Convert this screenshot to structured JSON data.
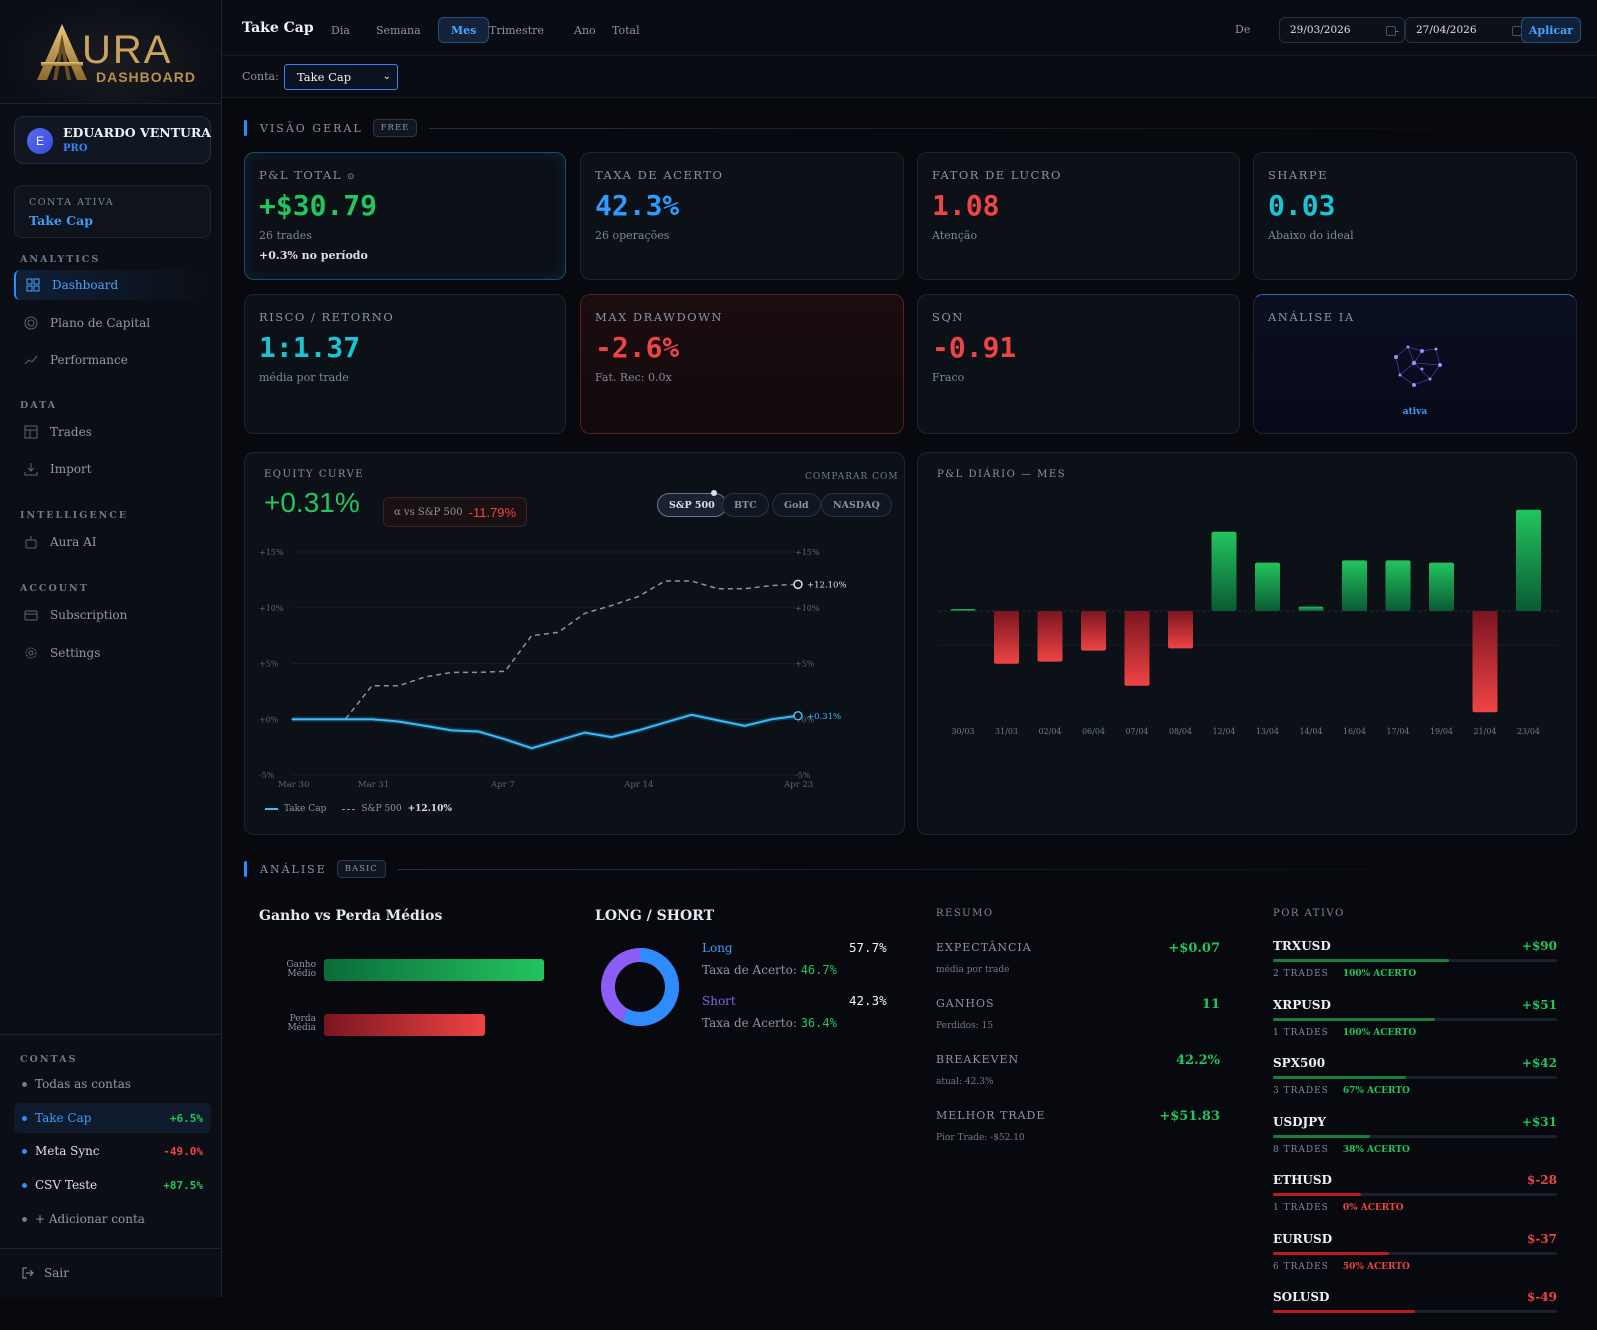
{
  "app": {
    "logo_word": "URA",
    "logo_sub": "DASHBOARD"
  },
  "user": {
    "initial": "E",
    "name": "EDUARDO VENTURA",
    "plan": "PRO"
  },
  "active_account": {
    "label": "CONTA ATIVA",
    "name": "Take Cap"
  },
  "nav": {
    "analytics_label": "ANALYTICS",
    "data_label": "DATA",
    "intelligence_label": "INTELLIGENCE",
    "account_label": "ACCOUNT",
    "items": [
      {
        "label": "Dashboard",
        "icon": "grid-icon"
      },
      {
        "label": "Plano de Capital",
        "icon": "target-icon"
      },
      {
        "label": "Performance",
        "icon": "trend-icon"
      },
      {
        "label": "Trades",
        "icon": "table-icon"
      },
      {
        "label": "Import",
        "icon": "download-icon"
      },
      {
        "label": "Aura AI",
        "icon": "bot-icon"
      },
      {
        "label": "Subscription",
        "icon": "card-icon"
      },
      {
        "label": "Settings",
        "icon": "gear-icon"
      }
    ]
  },
  "contas": {
    "label": "CONTAS",
    "all": "Todas as contas",
    "add": "+ Adicionar conta",
    "accounts": [
      {
        "name": "Take Cap",
        "pct": "+6.5%"
      },
      {
        "name": "Meta Sync",
        "pct": "-49.0%"
      },
      {
        "name": "CSV Teste",
        "pct": "+87.5%"
      }
    ]
  },
  "logout": "Sair",
  "topbar": {
    "title": "Take Cap",
    "tabs": [
      "Dia",
      "Semana",
      "Mes",
      "Trimestre",
      "Ano",
      "Total"
    ],
    "active_tab": "Mes",
    "de_label": "De",
    "date_from": "29/03/2026",
    "date_sep": "-",
    "date_to": "27/04/2026",
    "apply": "Aplicar"
  },
  "filter": {
    "label": "Conta:",
    "value": "Take Cap"
  },
  "overview": {
    "title": "VISÃO GERAL",
    "badge": "FREE",
    "pl": {
      "label": "P&L TOTAL",
      "value": "+$30.79",
      "sub": "26 trades",
      "sub2": "+0.3% no período"
    },
    "taxa": {
      "label": "TAXA DE ACERTO",
      "value": "42.3%",
      "sub": "26 operações"
    },
    "fator": {
      "label": "FATOR DE LUCRO",
      "value": "1.08",
      "sub": "Atenção"
    },
    "sharpe": {
      "label": "SHARPE",
      "value": "0.03",
      "sub": "Abaixo do ideal"
    },
    "risco": {
      "label": "RISCO / RETORNO",
      "value": "1:1.37",
      "sub": "média por trade"
    },
    "dd": {
      "label": "MAX DRAWDOWN",
      "value": "-2.6%",
      "sub": "Fat. Rec: 0.0x"
    },
    "sqn": {
      "label": "SQN",
      "value": "-0.91",
      "sub": "Fraco"
    },
    "ia": {
      "label": "ANÁLISE IA",
      "status": "ativa"
    }
  },
  "equity": {
    "label": "EQUITY CURVE",
    "value": "+0.31%",
    "alpha_label": "α vs S&P 500",
    "alpha_value": "-11.79%",
    "compare_label": "COMPARAR COM",
    "compare": [
      "S&P 500",
      "BTC",
      "Gold",
      "NASDAQ"
    ],
    "active_compare": "S&P 500",
    "legend_main": "Take Cap",
    "legend_bench": "S&P 500",
    "legend_bench_value": "+12.10%",
    "end_main": "+0.31%",
    "end_bench": "+12.10%"
  },
  "daily": {
    "label": "P&L DIÁRIO — MES"
  },
  "analysis": {
    "title": "ANÁLISE",
    "badge": "BASIC",
    "gp": {
      "title": "Ganho vs Perda Médios",
      "gain_label": "Ganho Médio",
      "loss_label": "Perda Média",
      "gain_frac": 1.0,
      "loss_frac": 0.73
    },
    "ls": {
      "title": "LONG / SHORT",
      "long": "Long",
      "long_pct": "57.7%",
      "long_rate_label": "Taxa de Acerto:",
      "long_rate": "46.7%",
      "short": "Short",
      "short_pct": "42.3%",
      "short_rate_label": "Taxa de Acerto:",
      "short_rate": "36.4%",
      "long_frac": 0.577
    },
    "resumo": {
      "title": "RESUMO",
      "items": [
        {
          "label": "EXPECTÂNCIA",
          "sub": "média por trade",
          "value": "+$0.07"
        },
        {
          "label": "GANHOS",
          "sub": "Perdidos: 15",
          "value": "11"
        },
        {
          "label": "BREAKEVEN",
          "sub": "atual: 42.3%",
          "value": "42.2%"
        },
        {
          "label": "MELHOR TRADE",
          "sub": "Pior Trade: -$52.10",
          "value": "+$51.83"
        }
      ]
    },
    "ativo": {
      "title": "POR ATIVO",
      "items": [
        {
          "name": "TRXUSD",
          "value": "+$90",
          "trades": "2 TRADES",
          "rate": "100% ACERTO",
          "frac": 0.62,
          "positive": true
        },
        {
          "name": "XRPUSD",
          "value": "+$51",
          "trades": "1 TRADES",
          "rate": "100% ACERTO",
          "frac": 0.57,
          "positive": true
        },
        {
          "name": "SPX500",
          "value": "+$42",
          "trades": "3 TRADES",
          "rate": "67% ACERTO",
          "frac": 0.47,
          "positive": true
        },
        {
          "name": "USDJPY",
          "value": "+$31",
          "trades": "8 TRADES",
          "rate": "38% ACERTO",
          "frac": 0.34,
          "positive": true
        },
        {
          "name": "ETHUSD",
          "value": "$-28",
          "trades": "1 TRADES",
          "rate": "0% ACERTO",
          "frac": 0.31,
          "positive": false
        },
        {
          "name": "EURUSD",
          "value": "$-37",
          "trades": "6 TRADES",
          "rate": "50% ACERTO",
          "frac": 0.41,
          "positive": false
        },
        {
          "name": "SOLUSD",
          "value": "$-49",
          "trades": "",
          "rate": "",
          "frac": 0.5,
          "positive": false
        }
      ]
    }
  },
  "chart_data": [
    {
      "type": "line",
      "title": "EQUITY CURVE",
      "x": [
        "Mar 30",
        "",
        "",
        "Mar 31",
        "",
        "",
        "",
        "",
        "Apr 7",
        "",
        "",
        "",
        "",
        "Apr 14",
        "",
        "",
        "",
        "",
        "",
        "Apr 23"
      ],
      "xticks": [
        "Mar 30",
        "Mar 31",
        "Apr 7",
        "Apr 14",
        "Apr 23"
      ],
      "ylim": [
        -5,
        15
      ],
      "yticks": [
        "+15%",
        "+10%",
        "+5%",
        "+0%",
        "-5%"
      ],
      "series": [
        {
          "name": "Take Cap",
          "values": [
            0,
            0,
            0,
            0,
            -0.2,
            -0.6,
            -1.0,
            -1.1,
            -1.8,
            -2.6,
            -1.9,
            -1.2,
            -1.6,
            -1.0,
            -0.3,
            0.4,
            -0.1,
            -0.6,
            0.0,
            0.31
          ]
        },
        {
          "name": "S&P 500",
          "values": [
            0,
            0,
            0,
            3,
            3,
            3.8,
            4.2,
            4.2,
            4.3,
            7.5,
            7.8,
            9.5,
            10.2,
            11.0,
            12.4,
            12.4,
            11.7,
            11.7,
            12.0,
            12.1
          ]
        }
      ]
    },
    {
      "type": "bar",
      "title": "P&L DIÁRIO — MES",
      "categories": [
        "30/03",
        "31/03",
        "02/04",
        "06/04",
        "07/04",
        "08/04",
        "12/04",
        "13/04",
        "14/04",
        "16/04",
        "17/04",
        "19/04",
        "21/04",
        "23/04"
      ],
      "values": [
        0.2,
        -12,
        -11.5,
        -9,
        -17,
        -8.5,
        18,
        11,
        1,
        11.5,
        11.5,
        11,
        -23,
        23
      ]
    }
  ]
}
